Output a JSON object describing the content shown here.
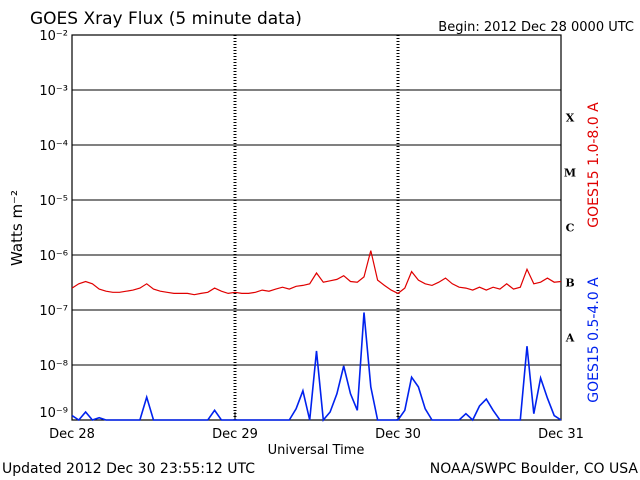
{
  "chart_data": {
    "type": "line",
    "title": "GOES Xray Flux (5 minute data)",
    "subtitle": "Begin:  2012 Dec 28 0000 UTC",
    "ylabel": "Watts m⁻²",
    "xlabel": "Universal Time",
    "footer_left": "Updated 2012 Dec 30 23:55:12 UTC",
    "footer_right": "NOAA/SWPC Boulder, CO USA",
    "log_y": true,
    "grid": true,
    "xlim": [
      0,
      72
    ],
    "xticks": [
      {
        "value": 0,
        "label": "Dec 28"
      },
      {
        "value": 24,
        "label": "Dec 29"
      },
      {
        "value": 48,
        "label": "Dec 30"
      },
      {
        "value": 72,
        "label": "Dec 31"
      }
    ],
    "ylim": [
      1e-09,
      0.01
    ],
    "yticks": [
      {
        "value": 1e-09,
        "label": "10⁻⁹"
      },
      {
        "value": 1e-08,
        "label": "10⁻⁸"
      },
      {
        "value": 1e-07,
        "label": "10⁻⁷"
      },
      {
        "value": 1e-06,
        "label": "10⁻⁶"
      },
      {
        "value": 1e-05,
        "label": "10⁻⁵"
      },
      {
        "value": 0.0001,
        "label": "10⁻⁴"
      },
      {
        "value": 0.001,
        "label": "10⁻³"
      },
      {
        "value": 0.01,
        "label": "10⁻²"
      }
    ],
    "flare_classes": [
      "X",
      "M",
      "C",
      "B",
      "A"
    ],
    "x": [
      0,
      1,
      2,
      3,
      4,
      5,
      6,
      7,
      8,
      9,
      10,
      11,
      12,
      13,
      14,
      15,
      16,
      17,
      18,
      19,
      20,
      21,
      22,
      23,
      24,
      25,
      26,
      27,
      28,
      29,
      30,
      31,
      32,
      33,
      34,
      35,
      36,
      37,
      38,
      39,
      40,
      41,
      42,
      43,
      44,
      45,
      46,
      47,
      48,
      49,
      50,
      51,
      52,
      53,
      54,
      55,
      56,
      57,
      58,
      59,
      60,
      61,
      62,
      63,
      64,
      65,
      66,
      67,
      68,
      69,
      70,
      71,
      72
    ],
    "series": [
      {
        "name": "GOES15 1.0-8.0 A",
        "color": "#e00000",
        "values": [
          2.5e-07,
          3e-07,
          3.3e-07,
          3e-07,
          2.4e-07,
          2.2e-07,
          2.1e-07,
          2.1e-07,
          2.2e-07,
          2.3e-07,
          2.5e-07,
          3e-07,
          2.4e-07,
          2.2e-07,
          2.1e-07,
          2e-07,
          2e-07,
          2e-07,
          1.9e-07,
          2e-07,
          2.1e-07,
          2.5e-07,
          2.2e-07,
          2e-07,
          2.1e-07,
          2e-07,
          2e-07,
          2.1e-07,
          2.3e-07,
          2.2e-07,
          2.4e-07,
          2.6e-07,
          2.4e-07,
          2.7e-07,
          2.8e-07,
          3e-07,
          4.7e-07,
          3.2e-07,
          3.4e-07,
          3.6e-07,
          4.2e-07,
          3.3e-07,
          3.2e-07,
          4e-07,
          1.2e-06,
          3.5e-07,
          2.8e-07,
          2.3e-07,
          2e-07,
          2.5e-07,
          5e-07,
          3.5e-07,
          3e-07,
          2.8e-07,
          3.2e-07,
          3.8e-07,
          3e-07,
          2.6e-07,
          2.5e-07,
          2.3e-07,
          2.6e-07,
          2.3e-07,
          2.6e-07,
          2.4e-07,
          3e-07,
          2.4e-07,
          2.6e-07,
          5.5e-07,
          3e-07,
          3.2e-07,
          3.8e-07,
          3.2e-07,
          3.3e-07
        ]
      },
      {
        "name": "GOES15 0.5-4.0 A",
        "color": "#0022ee",
        "values": [
          1.2e-09,
          1e-09,
          1.4e-09,
          1e-09,
          1.1e-09,
          1e-09,
          1e-09,
          1e-09,
          1e-09,
          1e-09,
          1e-09,
          2.6e-09,
          1e-09,
          1e-09,
          1e-09,
          1e-09,
          1e-09,
          1e-09,
          1e-09,
          1e-09,
          1e-09,
          1.5e-09,
          1e-09,
          1e-09,
          1e-09,
          1e-09,
          1e-09,
          1e-09,
          1e-09,
          1e-09,
          1e-09,
          1e-09,
          1e-09,
          1.6e-09,
          3.4e-09,
          1e-09,
          1.8e-08,
          1e-09,
          1.4e-09,
          3e-09,
          9.6e-09,
          3e-09,
          1.5e-09,
          9e-08,
          4e-09,
          1e-09,
          1e-09,
          1e-09,
          1e-09,
          1.5e-09,
          6e-09,
          4e-09,
          1.6e-09,
          1e-09,
          1e-09,
          1e-09,
          1e-09,
          1e-09,
          1.3e-09,
          1e-09,
          1.8e-09,
          2.4e-09,
          1.5e-09,
          1e-09,
          1e-09,
          1e-09,
          1e-09,
          2.2e-08,
          1.3e-09,
          5.8e-09,
          2.5e-09,
          1.2e-09,
          1e-09
        ]
      }
    ]
  }
}
